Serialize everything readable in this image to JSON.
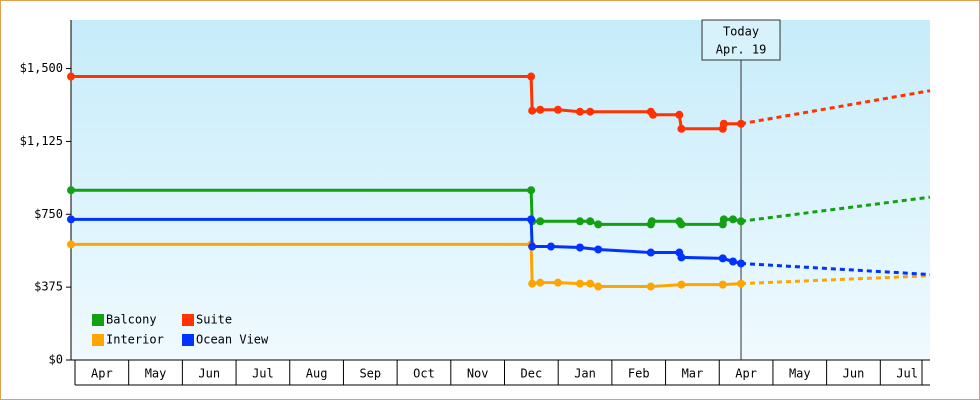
{
  "chart_data": {
    "type": "line",
    "ylim": [
      0,
      1750
    ],
    "yticks": [
      {
        "value": 0,
        "label": "$0"
      },
      {
        "value": 375,
        "label": "$375"
      },
      {
        "value": 750,
        "label": "$750"
      },
      {
        "value": 1125,
        "label": "$1,125"
      },
      {
        "value": 1500,
        "label": "$1,500"
      }
    ],
    "xlim": [
      0,
      16
    ],
    "xticks": [
      {
        "value": 0.5,
        "label": "Apr"
      },
      {
        "value": 1.5,
        "label": "May"
      },
      {
        "value": 2.5,
        "label": "Jun"
      },
      {
        "value": 3.5,
        "label": "Jul"
      },
      {
        "value": 4.5,
        "label": "Aug"
      },
      {
        "value": 5.5,
        "label": "Sep"
      },
      {
        "value": 6.5,
        "label": "Oct"
      },
      {
        "value": 7.5,
        "label": "Nov"
      },
      {
        "value": 8.5,
        "label": "Dec"
      },
      {
        "value": 9.5,
        "label": "Jan"
      },
      {
        "value": 10.5,
        "label": "Feb"
      },
      {
        "value": 11.5,
        "label": "Mar"
      },
      {
        "value": 12.5,
        "label": "Apr"
      },
      {
        "value": 13.5,
        "label": "May"
      },
      {
        "value": 14.5,
        "label": "Jun"
      },
      {
        "value": 15.5,
        "label": "Jul"
      }
    ],
    "today": {
      "x": 12.48,
      "label": [
        "Today",
        "Apr. 19"
      ]
    },
    "legend": "bottom-left",
    "series": [
      {
        "name": "Balcony",
        "color": "#13a013",
        "x": [
          0,
          8.57,
          8.59,
          8.74,
          9.48,
          9.67,
          9.82,
          10.8,
          10.82,
          11.33,
          11.37,
          12.14,
          12.16,
          12.33,
          12.48
        ],
        "values": [
          874,
          874,
          714,
          714,
          714,
          714,
          698,
          698,
          714,
          714,
          698,
          698,
          724,
          724,
          714
        ],
        "forecast": {
          "x": [
            12.48,
            16
          ],
          "values": [
            714,
            838
          ]
        }
      },
      {
        "name": "Suite",
        "color": "#ff3300",
        "x": [
          0,
          8.57,
          8.59,
          8.74,
          9.07,
          9.48,
          9.67,
          10.8,
          10.84,
          11.33,
          11.37,
          12.14,
          12.16,
          12.48
        ],
        "values": [
          1459,
          1459,
          1283,
          1288,
          1288,
          1278,
          1278,
          1278,
          1262,
          1262,
          1190,
          1190,
          1216,
          1216
        ],
        "forecast": {
          "x": [
            12.48,
            16
          ],
          "values": [
            1216,
            1386
          ]
        }
      },
      {
        "name": "Interior",
        "color": "#ffa500",
        "x": [
          0,
          8.57,
          8.59,
          8.74,
          9.07,
          9.48,
          9.67,
          9.82,
          10.8,
          11.37,
          12.14,
          12.48
        ],
        "values": [
          595,
          595,
          393,
          398,
          398,
          393,
          393,
          378,
          378,
          388,
          388,
          393
        ],
        "forecast": {
          "x": [
            12.48,
            16
          ],
          "values": [
            393,
            434
          ]
        }
      },
      {
        "name": "Ocean View",
        "color": "#0033ff",
        "x": [
          0,
          8.57,
          8.59,
          8.94,
          9.48,
          9.82,
          10.8,
          11.33,
          11.37,
          12.14,
          12.33,
          12.48
        ],
        "values": [
          724,
          724,
          584,
          584,
          579,
          569,
          553,
          553,
          528,
          523,
          507,
          497
        ],
        "forecast": {
          "x": [
            12.48,
            16
          ],
          "values": [
            497,
            440
          ]
        }
      }
    ]
  }
}
